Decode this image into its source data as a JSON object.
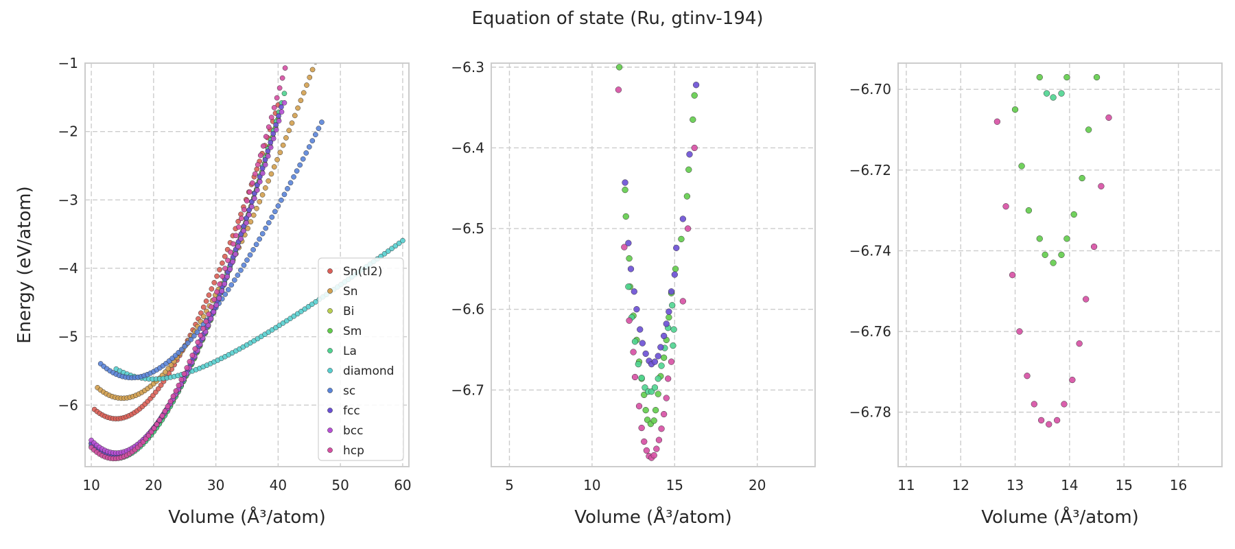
{
  "figure": {
    "title": "Equation of state (Ru, gtinv-194)"
  },
  "style": {
    "grid_color": "#cccccc",
    "spine_color": "#cccccc",
    "series_colors": {
      "Sn(tI2)": "#db5f57",
      "Sn": "#d3a04f",
      "Bi": "#b9cf50",
      "Sm": "#62cc4b",
      "La": "#4fd490",
      "diamond": "#57cfcf",
      "sc": "#5a84d9",
      "fcc": "#6a4fd4",
      "bcc": "#b84fd6",
      "hcp": "#d64fa3"
    }
  },
  "chart_data": [
    {
      "type": "scatter",
      "panel": "full",
      "title": "",
      "xlabel": "Volume (Å³/atom)",
      "ylabel": "Energy (eV/atom)",
      "xlim": [
        9,
        61
      ],
      "ylim": [
        -6.9,
        -1.0
      ],
      "xticks": [
        10,
        20,
        30,
        40,
        50,
        60
      ],
      "yticks": [
        -6,
        -5,
        -4,
        -3,
        -2,
        -1
      ],
      "grid": true,
      "legend_position": "lower-right",
      "legend": [
        "Sn(tI2)",
        "Sn",
        "Bi",
        "Sm",
        "La",
        "diamond",
        "sc",
        "fcc",
        "bcc",
        "hcp"
      ],
      "series": [
        {
          "name": "Sn(tI2)",
          "curve": {
            "v0": 14.0,
            "e0": -6.2,
            "b": 0.0112,
            "vmin": 10.5,
            "vmax": 40.0,
            "n": 70
          }
        },
        {
          "name": "Sn",
          "curve": {
            "v0": 15.0,
            "e0": -5.9,
            "b": 0.0097,
            "vmin": 11.0,
            "vmax": 46.0,
            "n": 75
          }
        },
        {
          "name": "Bi",
          "curve": {
            "v0": 14.0,
            "e0": -6.75,
            "b": 0.0118,
            "vmin": 10.2,
            "vmax": 40.0,
            "n": 70
          }
        },
        {
          "name": "Sm",
          "curve": {
            "v0": 14.0,
            "e0": -6.75,
            "b": 0.0118,
            "vmin": 10.0,
            "vmax": 40.0,
            "n": 70
          }
        },
        {
          "name": "La",
          "curve": {
            "v0": 13.9,
            "e0": -6.78,
            "b": 0.0119,
            "vmin": 10.0,
            "vmax": 41.0,
            "n": 72
          }
        },
        {
          "name": "diamond",
          "curve": {
            "v0": 20.0,
            "e0": -5.62,
            "b": 0.0041,
            "vmin": 14.0,
            "vmax": 60.0,
            "n": 80
          }
        },
        {
          "name": "sc",
          "curve": {
            "v0": 16.5,
            "e0": -5.6,
            "b": 0.0082,
            "vmin": 11.5,
            "vmax": 47.0,
            "n": 72
          }
        },
        {
          "name": "fcc",
          "curve": {
            "v0": 13.8,
            "e0": -6.73,
            "b": 0.0117,
            "vmin": 10.0,
            "vmax": 40.5,
            "n": 72
          }
        },
        {
          "name": "bcc",
          "curve": {
            "v0": 14.0,
            "e0": -6.7,
            "b": 0.0116,
            "vmin": 10.0,
            "vmax": 41.0,
            "n": 72
          }
        },
        {
          "name": "hcp",
          "curve": {
            "v0": 13.65,
            "e0": -6.783,
            "b": 0.0123,
            "vmin": 10.0,
            "vmax": 42.0,
            "n": 74
          }
        }
      ]
    },
    {
      "type": "scatter",
      "panel": "zoom-1",
      "title": "",
      "xlabel": "Volume (Å³/atom)",
      "ylabel": "",
      "xlim": [
        3.9,
        23.5
      ],
      "ylim": [
        -6.795,
        -6.295
      ],
      "xticks": [
        5,
        10,
        15,
        20
      ],
      "yticks": [
        -6.7,
        -6.6,
        -6.5,
        -6.4,
        -6.3
      ],
      "grid": true,
      "series": [
        {
          "name": "Sm",
          "points": [
            [
              11.65,
              -6.3
            ],
            [
              12.0,
              -6.452
            ],
            [
              12.05,
              -6.485
            ],
            [
              12.25,
              -6.537
            ],
            [
              12.3,
              -6.572
            ],
            [
              12.5,
              -6.608
            ],
            [
              12.7,
              -6.638
            ],
            [
              12.85,
              -6.665
            ],
            [
              13.0,
              -6.686
            ],
            [
              13.15,
              -6.706
            ],
            [
              13.25,
              -6.725
            ],
            [
              13.35,
              -6.737
            ],
            [
              13.55,
              -6.742
            ],
            [
              13.75,
              -6.738
            ],
            [
              13.85,
              -6.725
            ],
            [
              14.0,
              -6.705
            ],
            [
              14.15,
              -6.683
            ],
            [
              14.35,
              -6.66
            ],
            [
              14.5,
              -6.638
            ],
            [
              14.65,
              -6.61
            ],
            [
              14.8,
              -6.58
            ],
            [
              15.05,
              -6.55
            ],
            [
              15.4,
              -6.513
            ],
            [
              15.75,
              -6.46
            ],
            [
              15.85,
              -6.427
            ],
            [
              16.1,
              -6.365
            ],
            [
              16.2,
              -6.335
            ]
          ]
        },
        {
          "name": "La",
          "points": [
            [
              12.2,
              -6.572
            ],
            [
              12.4,
              -6.61
            ],
            [
              12.6,
              -6.64
            ],
            [
              12.8,
              -6.668
            ],
            [
              13.0,
              -6.685
            ],
            [
              13.2,
              -6.697
            ],
            [
              13.4,
              -6.702
            ],
            [
              13.6,
              -6.702
            ],
            [
              13.8,
              -6.697
            ],
            [
              14.0,
              -6.686
            ],
            [
              14.2,
              -6.67
            ],
            [
              14.4,
              -6.648
            ],
            [
              14.6,
              -6.623
            ],
            [
              14.85,
              -6.595
            ],
            [
              14.9,
              -6.645
            ],
            [
              14.95,
              -6.625
            ]
          ]
        },
        {
          "name": "fcc",
          "points": [
            [
              12.0,
              -6.443
            ],
            [
              12.2,
              -6.518
            ],
            [
              12.35,
              -6.55
            ],
            [
              12.55,
              -6.578
            ],
            [
              12.7,
              -6.6
            ],
            [
              12.9,
              -6.625
            ],
            [
              13.05,
              -6.642
            ],
            [
              13.25,
              -6.655
            ],
            [
              13.45,
              -6.664
            ],
            [
              13.6,
              -6.668
            ],
            [
              13.8,
              -6.665
            ],
            [
              14.0,
              -6.658
            ],
            [
              14.15,
              -6.647
            ],
            [
              14.35,
              -6.633
            ],
            [
              14.5,
              -6.618
            ],
            [
              14.65,
              -6.603
            ],
            [
              14.8,
              -6.578
            ],
            [
              15.0,
              -6.557
            ],
            [
              15.1,
              -6.524
            ],
            [
              15.5,
              -6.488
            ],
            [
              15.9,
              -6.408
            ],
            [
              16.3,
              -6.322
            ]
          ]
        },
        {
          "name": "hcp",
          "points": [
            [
              11.6,
              -6.328
            ],
            [
              11.95,
              -6.523
            ],
            [
              12.25,
              -6.614
            ],
            [
              12.5,
              -6.653
            ],
            [
              12.6,
              -6.684
            ],
            [
              12.85,
              -6.72
            ],
            [
              13.0,
              -6.747
            ],
            [
              13.15,
              -6.764
            ],
            [
              13.3,
              -6.775
            ],
            [
              13.45,
              -6.782
            ],
            [
              13.6,
              -6.784
            ],
            [
              13.75,
              -6.781
            ],
            [
              13.9,
              -6.773
            ],
            [
              14.05,
              -6.762
            ],
            [
              14.2,
              -6.748
            ],
            [
              14.35,
              -6.73
            ],
            [
              14.5,
              -6.71
            ],
            [
              14.6,
              -6.686
            ],
            [
              14.8,
              -6.665
            ],
            [
              15.5,
              -6.59
            ],
            [
              15.8,
              -6.5
            ],
            [
              16.2,
              -6.4
            ]
          ]
        }
      ]
    },
    {
      "type": "scatter",
      "panel": "zoom-2",
      "title": "",
      "xlabel": "Volume (Å³/atom)",
      "ylabel": "",
      "xlim": [
        10.85,
        16.8
      ],
      "ylim": [
        -6.7935,
        -6.6935
      ],
      "xticks": [
        11,
        12,
        13,
        14,
        15,
        16
      ],
      "yticks": [
        -6.78,
        -6.76,
        -6.74,
        -6.72,
        -6.7
      ],
      "grid": true,
      "series": [
        {
          "name": "Sm",
          "points": [
            [
              13.0,
              -6.705
            ],
            [
              13.45,
              -6.697
            ],
            [
              13.95,
              -6.697
            ],
            [
              14.5,
              -6.697
            ],
            [
              13.12,
              -6.719
            ],
            [
              13.25,
              -6.73
            ],
            [
              13.45,
              -6.737
            ],
            [
              13.55,
              -6.741
            ],
            [
              13.7,
              -6.743
            ],
            [
              13.85,
              -6.741
            ],
            [
              13.95,
              -6.737
            ],
            [
              14.08,
              -6.731
            ],
            [
              14.23,
              -6.722
            ],
            [
              14.35,
              -6.71
            ]
          ]
        },
        {
          "name": "La",
          "points": [
            [
              13.58,
              -6.701
            ],
            [
              13.7,
              -6.702
            ],
            [
              13.85,
              -6.701
            ]
          ]
        },
        {
          "name": "hcp",
          "points": [
            [
              12.67,
              -6.708
            ],
            [
              12.83,
              -6.729
            ],
            [
              12.95,
              -6.746
            ],
            [
              13.08,
              -6.76
            ],
            [
              13.22,
              -6.771
            ],
            [
              13.35,
              -6.778
            ],
            [
              13.48,
              -6.782
            ],
            [
              13.62,
              -6.783
            ],
            [
              13.77,
              -6.782
            ],
            [
              13.9,
              -6.778
            ],
            [
              14.05,
              -6.772
            ],
            [
              14.18,
              -6.763
            ],
            [
              14.3,
              -6.752
            ],
            [
              14.45,
              -6.739
            ],
            [
              14.58,
              -6.724
            ],
            [
              14.72,
              -6.707
            ]
          ]
        }
      ]
    }
  ]
}
